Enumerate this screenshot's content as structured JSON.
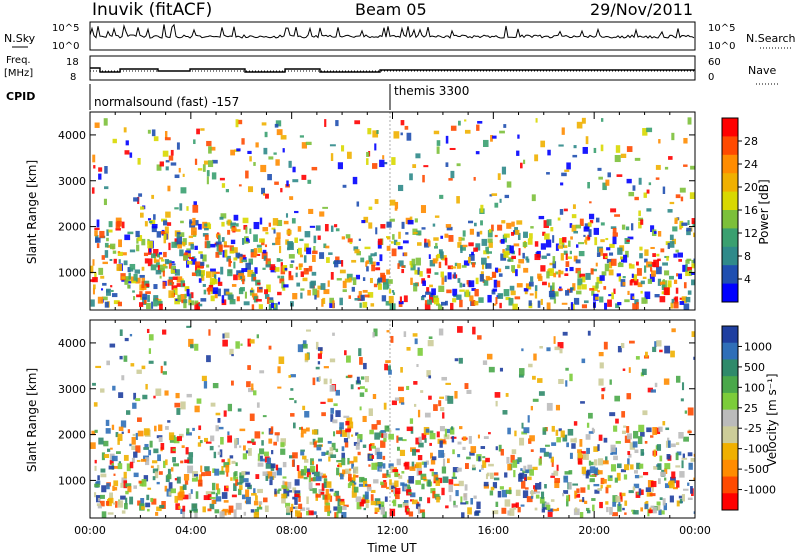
{
  "header": {
    "station": "Inuvik (fitACF)",
    "beam": "Beam 05",
    "date": "29/Nov/2011"
  },
  "side_labels": {
    "nsky": "N.Sky",
    "freq_top": "Freq.",
    "freq_unit": "[MHz]",
    "cpid": "CPID",
    "nsearch": "N.Search",
    "nave": "Nave",
    "nsky_top_tick": "10^5",
    "nsky_bottom_tick": "10^0",
    "nsearch_top_tick": "10^5",
    "nsearch_bottom_tick": "10^0",
    "freq_ticks": [
      "18",
      "8"
    ],
    "nave_ticks": [
      "60",
      "0"
    ]
  },
  "cpid": {
    "before": "normalsound (fast) -157",
    "after": "themis 3300",
    "switch_time_h": 11.9
  },
  "chart_data": [
    {
      "type": "heatmap",
      "title": "",
      "xlabel": "",
      "ylabel": "Slant Range [km]",
      "ylim": [
        180,
        4500
      ],
      "xlim": [
        0,
        24
      ],
      "yticks": [
        "1000",
        "2000",
        "3000",
        "4000"
      ],
      "colorbar": {
        "label": "Power [dB]",
        "ticks": [
          "28",
          "24",
          "20",
          "16",
          "12",
          "8",
          "4"
        ],
        "colors": [
          "#ff0000",
          "#ff4a00",
          "#ff8c00",
          "#f0b000",
          "#d8d800",
          "#7cc03a",
          "#3aa070",
          "#2f8a8a",
          "#1f4fb0",
          "#0000ff"
        ]
      }
    },
    {
      "type": "heatmap",
      "title": "",
      "xlabel": "Time UT",
      "ylabel": "Slant Range [km]",
      "ylim": [
        180,
        4500
      ],
      "xlim": [
        0,
        24
      ],
      "yticks": [
        "1000",
        "2000",
        "3000",
        "4000"
      ],
      "xticks": [
        "00:00",
        "04:00",
        "08:00",
        "12:00",
        "16:00",
        "20:00",
        "00:00"
      ],
      "colorbar": {
        "label": "Velocity [m s⁻¹]",
        "ticks": [
          "1000",
          "500",
          "100",
          "25",
          "-25",
          "-100",
          "-500",
          "-1000"
        ],
        "colors": [
          "#1f3fa0",
          "#2f6fb8",
          "#2f8a6a",
          "#4aa84a",
          "#7ccc3a",
          "#bbbbbb",
          "#cccc99",
          "#f0b000",
          "#ff8c00",
          "#ff4a00",
          "#ff0000"
        ]
      }
    }
  ]
}
